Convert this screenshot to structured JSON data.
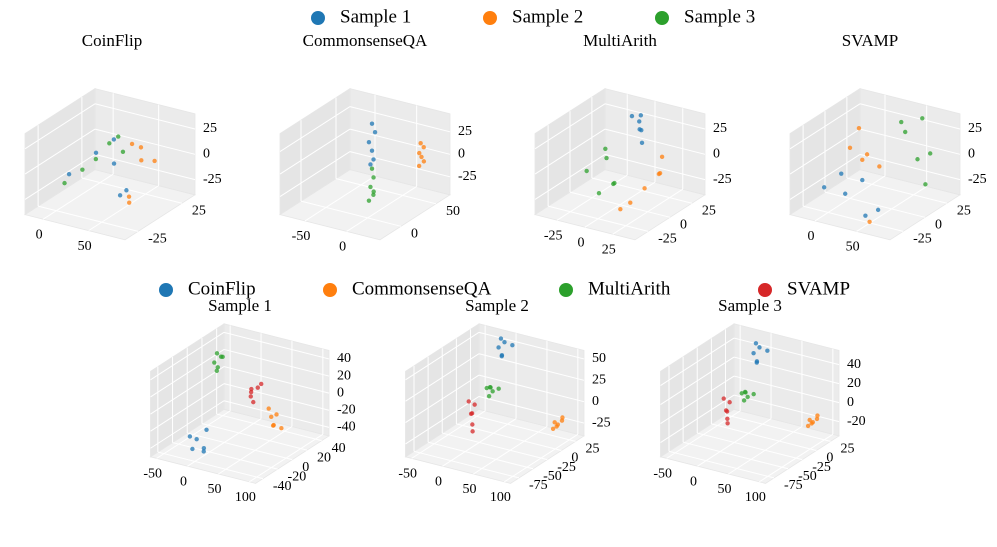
{
  "legends": [
    {
      "entries": [
        {
          "name": "Sample 1",
          "color": "#1f77b4"
        },
        {
          "name": "Sample 2",
          "color": "#ff7f0e"
        },
        {
          "name": "Sample 3",
          "color": "#2ca02c"
        }
      ]
    },
    {
      "entries": [
        {
          "name": "CoinFlip",
          "color": "#1f77b4"
        },
        {
          "name": "CommonsenseQA",
          "color": "#ff7f0e"
        },
        {
          "name": "MultiArith",
          "color": "#2ca02c"
        },
        {
          "name": "SVAMP",
          "color": "#d62728"
        }
      ]
    }
  ],
  "chart_data": [
    {
      "type": "scatter3d",
      "title": "CoinFlip",
      "legend": 0,
      "xlim": [
        -20,
        90
      ],
      "ylim": [
        -40,
        40
      ],
      "zlim": [
        -40,
        40
      ],
      "xticks": [
        0,
        50
      ],
      "yticks": [
        -25,
        25
      ],
      "zticks": [
        -25,
        0,
        25
      ],
      "series": [
        {
          "x": [
            10,
            20,
            25,
            -10,
            75,
            80
          ],
          "y": [
            10,
            20,
            15,
            0,
            -30,
            -28
          ],
          "z": [
            0,
            10,
            -10,
            -20,
            -5,
            0
          ]
        },
        {
          "x": [
            40,
            45,
            55,
            60,
            80,
            85
          ],
          "y": [
            20,
            25,
            15,
            25,
            -25,
            -30
          ],
          "z": [
            10,
            5,
            0,
            -5,
            -8,
            -10
          ]
        },
        {
          "x": [
            -15,
            -5,
            5,
            15,
            20,
            30
          ],
          "y": [
            0,
            10,
            15,
            20,
            25,
            20
          ],
          "z": [
            -30,
            -20,
            -10,
            5,
            10,
            0
          ]
        }
      ]
    },
    {
      "type": "scatter3d",
      "title": "CommonsenseQA",
      "legend": 0,
      "xlim": [
        -80,
        40
      ],
      "ylim": [
        -30,
        70
      ],
      "zlim": [
        -45,
        45
      ],
      "xticks": [
        -50,
        0
      ],
      "yticks": [
        0,
        50
      ],
      "zticks": [
        -25,
        0,
        25
      ],
      "series": [
        {
          "x": [
            -20,
            -18,
            -22,
            -20,
            -19,
            -21
          ],
          "y": [
            30,
            32,
            28,
            30,
            31,
            29
          ],
          "z": [
            40,
            30,
            20,
            10,
            0,
            -5
          ]
        },
        {
          "x": [
            30,
            32,
            30,
            31,
            33,
            29
          ],
          "y": [
            40,
            42,
            38,
            40,
            41,
            39
          ],
          "z": [
            25,
            20,
            15,
            10,
            5,
            0
          ]
        },
        {
          "x": [
            -20,
            -19,
            -21,
            -18,
            -20,
            -22
          ],
          "y": [
            30,
            31,
            29,
            30,
            32,
            28
          ],
          "z": [
            -10,
            -20,
            -30,
            -35,
            -40,
            -45
          ]
        }
      ]
    },
    {
      "type": "scatter3d",
      "title": "MultiArith",
      "legend": 0,
      "xlim": [
        -45,
        45
      ],
      "ylim": [
        -40,
        40
      ],
      "zlim": [
        -40,
        40
      ],
      "xticks": [
        -25,
        0,
        25
      ],
      "yticks": [
        -25,
        0,
        25
      ],
      "zticks": [
        -25,
        0,
        25
      ],
      "series": [
        {
          "x": [
            -5,
            0,
            5,
            -2,
            3,
            8
          ],
          "y": [
            20,
            22,
            18,
            25,
            20,
            15
          ],
          "z": [
            35,
            30,
            25,
            20,
            38,
            15
          ]
        },
        {
          "x": [
            25,
            30,
            35,
            20,
            40,
            30
          ],
          "y": [
            -20,
            -10,
            0,
            -25,
            -5,
            10
          ],
          "z": [
            -20,
            -10,
            0,
            -25,
            5,
            10
          ]
        },
        {
          "x": [
            -30,
            -20,
            -10,
            -15,
            -25,
            -5
          ],
          "y": [
            0,
            10,
            5,
            -5,
            15,
            0
          ],
          "z": [
            -15,
            -5,
            -25,
            -30,
            0,
            -20
          ]
        }
      ]
    },
    {
      "type": "scatter3d",
      "title": "SVAMP",
      "legend": 0,
      "xlim": [
        -30,
        90
      ],
      "ylim": [
        -40,
        40
      ],
      "zlim": [
        -40,
        40
      ],
      "xticks": [
        0,
        50
      ],
      "yticks": [
        -25,
        0,
        25
      ],
      "zticks": [
        -25,
        0,
        25
      ],
      "series": [
        {
          "x": [
            -10,
            0,
            10,
            20,
            50,
            60
          ],
          "y": [
            -20,
            -10,
            -15,
            -5,
            -30,
            -25
          ],
          "z": [
            -20,
            -10,
            -25,
            -15,
            -30,
            -25
          ]
        },
        {
          "x": [
            0,
            10,
            20,
            30,
            -5,
            55
          ],
          "y": [
            0,
            10,
            -5,
            5,
            15,
            -30
          ],
          "z": [
            10,
            0,
            5,
            -5,
            20,
            -35
          ]
        },
        {
          "x": [
            30,
            40,
            50,
            60,
            70,
            80
          ],
          "y": [
            30,
            25,
            35,
            20,
            25,
            10
          ],
          "z": [
            25,
            20,
            30,
            0,
            5,
            -15
          ]
        }
      ]
    },
    {
      "type": "scatter3d",
      "title": "Sample 1",
      "legend": 1,
      "xlim": [
        -60,
        110
      ],
      "ylim": [
        -50,
        50
      ],
      "zlim": [
        -50,
        50
      ],
      "xticks": [
        -50,
        0,
        50,
        100
      ],
      "yticks": [
        -40,
        -20,
        0,
        20,
        40
      ],
      "zticks": [
        -40,
        -20,
        0,
        20,
        40
      ],
      "series": [
        {
          "x": [
            -20,
            -15,
            -10,
            -5,
            0,
            5
          ],
          "y": [
            -30,
            -25,
            -35,
            -20,
            -28,
            -32
          ],
          "z": [
            -30,
            -35,
            -40,
            -25,
            -45,
            -38
          ]
        },
        {
          "x": [
            60,
            70,
            80,
            75,
            85,
            90
          ],
          "y": [
            10,
            5,
            0,
            8,
            -5,
            2
          ],
          "z": [
            -5,
            -10,
            -15,
            -8,
            -12,
            -18
          ]
        },
        {
          "x": [
            -40,
            -35,
            -30,
            -38,
            -32,
            -36
          ],
          "y": [
            20,
            25,
            15,
            22,
            18,
            28
          ],
          "z": [
            25,
            30,
            20,
            35,
            22,
            28
          ]
        },
        {
          "x": [
            20,
            25,
            30,
            22,
            28,
            35
          ],
          "y": [
            20,
            15,
            25,
            18,
            22,
            10
          ],
          "z": [
            5,
            0,
            10,
            3,
            7,
            -2
          ]
        }
      ]
    },
    {
      "type": "scatter3d",
      "title": "Sample 2",
      "legend": 1,
      "xlim": [
        -60,
        110
      ],
      "ylim": [
        -90,
        40
      ],
      "zlim": [
        -40,
        60
      ],
      "xticks": [
        -50,
        0,
        50,
        100
      ],
      "yticks": [
        -75,
        -50,
        -25,
        0,
        25
      ],
      "zticks": [
        -25,
        0,
        25,
        50
      ],
      "series": [
        {
          "x": [
            -10,
            -5,
            0,
            -8,
            -3,
            5
          ],
          "y": [
            20,
            25,
            15,
            22,
            18,
            28
          ],
          "z": [
            50,
            55,
            45,
            60,
            42,
            52
          ]
        },
        {
          "x": [
            90,
            95,
            100,
            92,
            98,
            96
          ],
          "y": [
            10,
            8,
            12,
            5,
            15,
            9
          ],
          "z": [
            -15,
            -18,
            -12,
            -20,
            -10,
            -16
          ]
        },
        {
          "x": [
            -20,
            -15,
            -10,
            -18,
            -12,
            -8
          ],
          "y": [
            10,
            15,
            5,
            12,
            8,
            18
          ],
          "z": [
            5,
            0,
            10,
            -5,
            8,
            3
          ]
        },
        {
          "x": [
            -40,
            -35,
            -30,
            -38,
            -25,
            -20
          ],
          "y": [
            0,
            5,
            -5,
            2,
            -10,
            -15
          ],
          "z": [
            -10,
            -15,
            -20,
            -25,
            -30,
            -35
          ]
        }
      ]
    },
    {
      "type": "scatter3d",
      "title": "Sample 3",
      "legend": 1,
      "xlim": [
        -60,
        110
      ],
      "ylim": [
        -90,
        40
      ],
      "zlim": [
        -35,
        55
      ],
      "xticks": [
        -50,
        0,
        50,
        100
      ],
      "yticks": [
        -75,
        -50,
        -25,
        0,
        25
      ],
      "zticks": [
        -20,
        0,
        20,
        40
      ],
      "series": [
        {
          "x": [
            -10,
            -5,
            0,
            -8,
            -3,
            5
          ],
          "y": [
            20,
            25,
            15,
            22,
            18,
            28
          ],
          "z": [
            40,
            45,
            35,
            50,
            32,
            42
          ]
        },
        {
          "x": [
            90,
            95,
            100,
            92,
            98,
            96
          ],
          "y": [
            10,
            8,
            12,
            5,
            15,
            9
          ],
          "z": [
            -10,
            -12,
            -8,
            -14,
            -6,
            -11
          ]
        },
        {
          "x": [
            -20,
            -15,
            -10,
            -18,
            -12,
            -8
          ],
          "y": [
            10,
            15,
            5,
            12,
            8,
            18
          ],
          "z": [
            0,
            -5,
            5,
            -8,
            3,
            -2
          ]
        },
        {
          "x": [
            -40,
            -35,
            -30,
            -38,
            -25,
            -20
          ],
          "y": [
            0,
            5,
            -5,
            2,
            -10,
            -15
          ],
          "z": [
            -5,
            -10,
            -15,
            -18,
            -20,
            -22
          ]
        }
      ]
    }
  ]
}
